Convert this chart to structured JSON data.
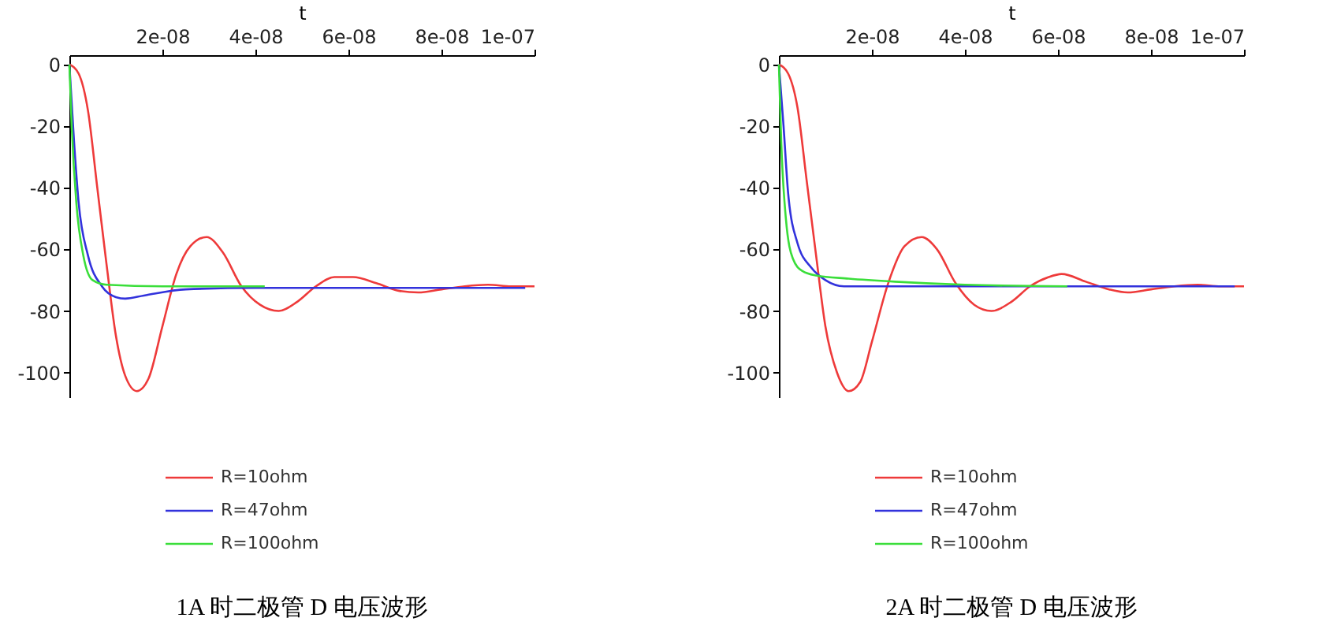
{
  "chart_data": [
    {
      "type": "line",
      "title": "1A 时二极管 D 电压波形",
      "xlabel": "t",
      "xlim": [
        0,
        1e-07
      ],
      "ylim": [
        -108,
        3
      ],
      "xticks": [
        {
          "value": 2e-08,
          "label": "2e-08"
        },
        {
          "value": 4e-08,
          "label": "4e-08"
        },
        {
          "value": 6e-08,
          "label": "6e-08"
        },
        {
          "value": 8e-08,
          "label": "8e-08"
        },
        {
          "value": 1e-07,
          "label": "1e-07"
        }
      ],
      "yticks": [
        0,
        -20,
        -40,
        -60,
        -80,
        -100
      ],
      "grid": false,
      "legend": "bottom",
      "line_style": "solid",
      "marker": "none",
      "series": [
        {
          "name": "R=10ohm",
          "color": "#ee3a3a",
          "x": [
            0,
            2e-09,
            4e-09,
            6e-09,
            8e-09,
            1e-08,
            1.2e-08,
            1.45e-08,
            1.7e-08,
            2e-08,
            2.3e-08,
            2.6e-08,
            2.95e-08,
            3.3e-08,
            3.7e-08,
            4.1e-08,
            4.5e-08,
            4.9e-08,
            5.3e-08,
            5.7e-08,
            6.1e-08,
            6.6e-08,
            7.1e-08,
            7.5e-08,
            8e-08,
            8.5e-08,
            9e-08,
            9.5e-08,
            1e-07
          ],
          "values": [
            0,
            -3,
            -15,
            -40,
            -65,
            -88,
            -101,
            -106,
            -102,
            -85,
            -68,
            -59,
            -56,
            -61,
            -72,
            -78,
            -80,
            -77,
            -72,
            -69,
            -69,
            -71,
            -73.5,
            -74,
            -73,
            -72,
            -71.5,
            -72,
            -72
          ]
        },
        {
          "name": "R=47ohm",
          "color": "#3232dc",
          "x": [
            0,
            1e-09,
            2e-09,
            4e-09,
            7e-09,
            1e-08,
            1.2e-08,
            1.6e-08,
            2.5e-08,
            4e-08,
            6e-08,
            9.8e-08
          ],
          "values": [
            0,
            -25,
            -45,
            -62,
            -72,
            -75.5,
            -76,
            -75,
            -73,
            -72.5,
            -72.5,
            -72.5
          ]
        },
        {
          "name": "R=100ohm",
          "color": "#3ade3a",
          "x": [
            0,
            5e-10,
            1.5e-09,
            3e-09,
            5e-09,
            8e-09,
            2e-08,
            4.2e-08
          ],
          "values": [
            0,
            -20,
            -45,
            -62,
            -70,
            -71.5,
            -72,
            -72
          ]
        }
      ]
    },
    {
      "type": "line",
      "title": "2A 时二极管 D 电压波形",
      "xlabel": "t",
      "xlim": [
        0,
        1e-07
      ],
      "ylim": [
        -108,
        3
      ],
      "xticks": [
        {
          "value": 2e-08,
          "label": "2e-08"
        },
        {
          "value": 4e-08,
          "label": "4e-08"
        },
        {
          "value": 6e-08,
          "label": "6e-08"
        },
        {
          "value": 8e-08,
          "label": "8e-08"
        },
        {
          "value": 1e-07,
          "label": "1e-07"
        }
      ],
      "yticks": [
        0,
        -20,
        -40,
        -60,
        -80,
        -100
      ],
      "grid": false,
      "legend": "bottom",
      "line_style": "solid",
      "marker": "none",
      "series": [
        {
          "name": "R=10ohm",
          "color": "#ee3a3a",
          "x": [
            0,
            2e-09,
            4e-09,
            6e-09,
            8e-09,
            1e-08,
            1.25e-08,
            1.5e-08,
            1.75e-08,
            2e-08,
            2.35e-08,
            2.7e-08,
            3.07e-08,
            3.4e-08,
            3.8e-08,
            4.2e-08,
            4.57e-08,
            5e-08,
            5.4e-08,
            5.8e-08,
            6.08e-08,
            6.6e-08,
            7.1e-08,
            7.5e-08,
            8e-08,
            8.5e-08,
            9e-08,
            9.5e-08,
            1e-07
          ],
          "values": [
            0,
            -3,
            -14,
            -38,
            -62,
            -85,
            -100,
            -106,
            -103,
            -90,
            -71,
            -59,
            -56,
            -60,
            -71,
            -78,
            -80,
            -77,
            -72,
            -69,
            -68,
            -70.5,
            -73,
            -74,
            -73,
            -72,
            -71.5,
            -72,
            -72
          ]
        },
        {
          "name": "R=47ohm",
          "color": "#3232dc",
          "x": [
            0,
            1e-09,
            2e-09,
            4e-09,
            7e-09,
            1e-08,
            1.4e-08,
            2e-08,
            6e-08,
            9.8e-08
          ],
          "values": [
            0,
            -20,
            -42,
            -58,
            -66,
            -70,
            -72,
            -72,
            -72,
            -72
          ]
        },
        {
          "name": "R=100ohm",
          "color": "#3ade3a",
          "x": [
            0,
            5e-10,
            1.5e-09,
            3e-09,
            5e-09,
            8e-09,
            1.5e-08,
            2.5e-08,
            4e-08,
            6.2e-08
          ],
          "values": [
            0,
            -25,
            -50,
            -63,
            -67,
            -68.5,
            -69.5,
            -70.5,
            -71.5,
            -72
          ]
        }
      ]
    }
  ]
}
